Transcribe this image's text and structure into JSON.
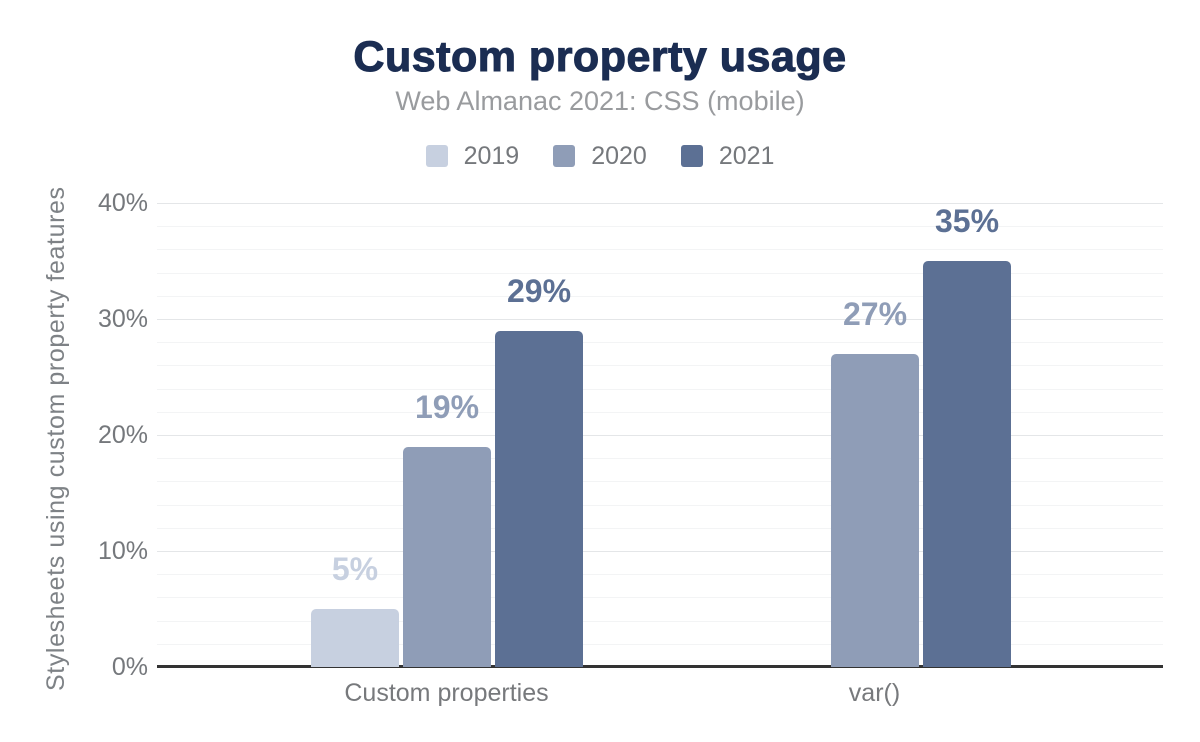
{
  "chart_data": {
    "type": "bar",
    "title": "Custom property usage",
    "subtitle": "Web Almanac 2021: CSS (mobile)",
    "ylabel": "Stylesheets using custom property features",
    "xlabel": "",
    "categories": [
      "Custom properties",
      "var()"
    ],
    "series": [
      {
        "name": "2019",
        "color": "#c7d0e0",
        "values": [
          5,
          null
        ],
        "labels": [
          "5%",
          null
        ]
      },
      {
        "name": "2020",
        "color": "#8f9db7",
        "values": [
          19,
          27
        ],
        "labels": [
          "19%",
          "27%"
        ]
      },
      {
        "name": "2021",
        "color": "#5c7094",
        "values": [
          29,
          35
        ],
        "labels": [
          "29%",
          "35%"
        ]
      }
    ],
    "ylim": [
      0,
      40
    ],
    "ytick_labels": [
      "0%",
      "10%",
      "20%",
      "30%",
      "40%"
    ],
    "ytick_values": [
      0,
      10,
      20,
      30,
      40
    ],
    "minor_grid_step": 2,
    "major_grid_step": 10,
    "grid": true,
    "legend_position": "top-center",
    "legend_entries": [
      "2019",
      "2020",
      "2021"
    ]
  },
  "colors": {
    "title": "#1b2d52",
    "subtitle": "#999b9e",
    "axis_text": "#75787c",
    "axis_line": "#333333",
    "grid_major": "#e4e6e8",
    "grid_minor": "#f3f4f5",
    "background": "#ffffff"
  }
}
